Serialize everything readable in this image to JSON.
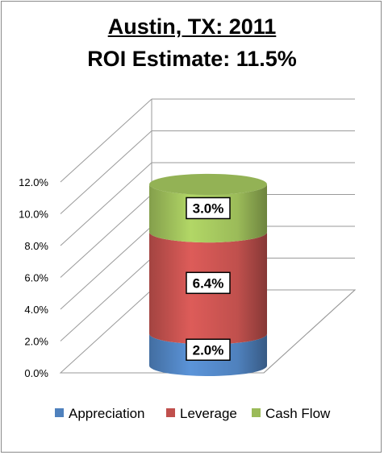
{
  "title": "Austin, TX:  2011",
  "subtitle": "ROI Estimate: 11.5%",
  "chart_data": {
    "type": "bar",
    "stacked": true,
    "three_d": "cylinder",
    "categories": [
      ""
    ],
    "series": [
      {
        "name": "Appreciation",
        "values": [
          2.0
        ],
        "label": "2.0%",
        "color": "#4f81bd"
      },
      {
        "name": "Leverage",
        "values": [
          6.4
        ],
        "label": "6.4%",
        "color": "#c0504d"
      },
      {
        "name": "Cash Flow",
        "values": [
          3.0
        ],
        "label": "3.0%",
        "color": "#9bbb59"
      }
    ],
    "ylim": [
      0,
      12
    ],
    "yticks": [
      "0.0%",
      "2.0%",
      "4.0%",
      "6.0%",
      "8.0%",
      "10.0%",
      "12.0%"
    ],
    "grid": true,
    "legend_position": "bottom"
  }
}
